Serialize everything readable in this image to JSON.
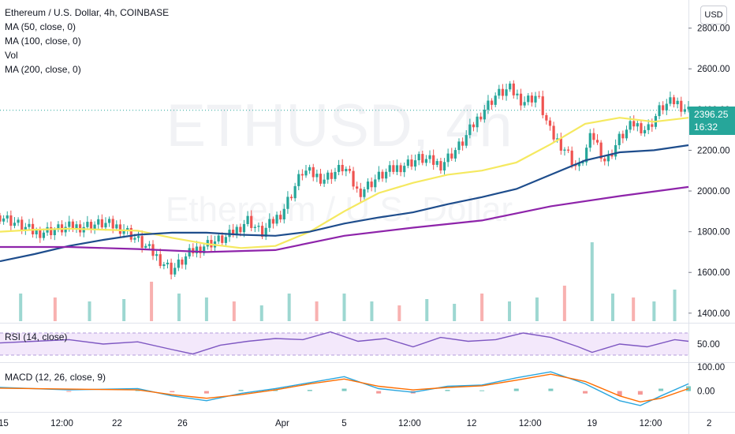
{
  "header": {
    "title": "Ethereum / U.S. Dollar, 4h, COINBASE",
    "currency_button": "USD"
  },
  "legend": [
    "MA (50, close, 0)",
    "MA (100, close, 0)",
    "Vol",
    "MA (200, close, 0)"
  ],
  "watermark": {
    "symbol": "ETHUSD, 4h",
    "name": "Ethereum / U.S. Dollar"
  },
  "last_price": {
    "value": "2396.25",
    "countdown": "16:32"
  },
  "rsi_label": "RSI (14, close)",
  "macd_label": "MACD (12, 26, close, 9)",
  "x_ticks": [
    "15",
    "12:00",
    "22",
    "26",
    "Apr",
    "5",
    "12:00",
    "12",
    "12:00",
    "19",
    "12:00",
    "2"
  ],
  "colors": {
    "up": "#26a69a",
    "down": "#ef5350",
    "ma50": "#f5e960",
    "ma100": "#1e4d8c",
    "ma200": "#8e24aa",
    "rsi": "#7e57c2",
    "macd": "#2aa6de",
    "signal": "#ff6d00"
  },
  "chart_data": [
    {
      "type": "line",
      "pane": "price",
      "title": "Ethereum / U.S. Dollar, 4h, COINBASE",
      "y_ticks": [
        1400,
        1600,
        1800,
        2000,
        2200,
        2400,
        2600,
        2800
      ],
      "ylim": [
        1380,
        2880
      ],
      "xlim": [
        0,
        1
      ],
      "x_tick_positions": [
        0.005,
        0.09,
        0.17,
        0.265,
        0.41,
        0.5,
        0.595,
        0.685,
        0.77,
        0.86,
        0.945,
        1.03
      ],
      "series": [
        {
          "name": "MA (50, close, 0)",
          "x": [
            0,
            0.05,
            0.1,
            0.15,
            0.2,
            0.25,
            0.3,
            0.35,
            0.4,
            0.45,
            0.5,
            0.55,
            0.6,
            0.65,
            0.7,
            0.75,
            0.8,
            0.85,
            0.9,
            0.95,
            1.0
          ],
          "values": [
            1800,
            1810,
            1815,
            1810,
            1805,
            1770,
            1740,
            1720,
            1730,
            1800,
            1900,
            1990,
            2040,
            2080,
            2100,
            2140,
            2230,
            2330,
            2360,
            2340,
            2360
          ]
        },
        {
          "name": "MA (100, close, 0)",
          "x": [
            0,
            0.05,
            0.1,
            0.15,
            0.2,
            0.25,
            0.3,
            0.35,
            0.4,
            0.45,
            0.5,
            0.55,
            0.6,
            0.65,
            0.7,
            0.75,
            0.8,
            0.85,
            0.9,
            0.95,
            1.0
          ],
          "values": [
            1655,
            1690,
            1730,
            1760,
            1785,
            1795,
            1795,
            1785,
            1780,
            1800,
            1840,
            1870,
            1895,
            1935,
            1970,
            2010,
            2080,
            2150,
            2190,
            2200,
            2225
          ]
        },
        {
          "name": "MA (200, close, 0)",
          "x": [
            0,
            0.1,
            0.2,
            0.3,
            0.4,
            0.5,
            0.6,
            0.7,
            0.8,
            0.9,
            1.0
          ],
          "values": [
            1725,
            1725,
            1715,
            1700,
            1710,
            1780,
            1820,
            1855,
            1925,
            1975,
            2020
          ]
        },
        {
          "name": "Price",
          "x": [
            0,
            0.05,
            0.1,
            0.15,
            0.18,
            0.22,
            0.25,
            0.28,
            0.3,
            0.33,
            0.36,
            0.38,
            0.41,
            0.44,
            0.47,
            0.5,
            0.52,
            0.55,
            0.58,
            0.61,
            0.64,
            0.67,
            0.7,
            0.72,
            0.74,
            0.76,
            0.78,
            0.8,
            0.82,
            0.84,
            0.86,
            0.88,
            0.9,
            0.92,
            0.94,
            0.96,
            0.98,
            1.0
          ],
          "values": [
            1880,
            1795,
            1820,
            1840,
            1815,
            1700,
            1610,
            1705,
            1740,
            1770,
            1860,
            1790,
            1900,
            2100,
            2060,
            2120,
            1990,
            2070,
            2120,
            2160,
            2130,
            2230,
            2390,
            2470,
            2500,
            2440,
            2470,
            2280,
            2210,
            2100,
            2280,
            2140,
            2260,
            2330,
            2300,
            2410,
            2440,
            2396
          ]
        }
      ]
    },
    {
      "type": "bar",
      "pane": "volume",
      "name": "Vol",
      "x": [
        0.03,
        0.08,
        0.13,
        0.18,
        0.22,
        0.26,
        0.3,
        0.34,
        0.38,
        0.42,
        0.46,
        0.5,
        0.54,
        0.58,
        0.62,
        0.66,
        0.7,
        0.74,
        0.78,
        0.82,
        0.86,
        0.89,
        0.92,
        0.95,
        0.98
      ],
      "values": [
        0.35,
        0.3,
        0.25,
        0.28,
        0.5,
        0.35,
        0.3,
        0.25,
        0.2,
        0.35,
        0.25,
        0.35,
        0.25,
        0.2,
        0.28,
        0.22,
        0.35,
        0.25,
        0.3,
        0.45,
        1.0,
        0.35,
        0.3,
        0.25,
        0.4
      ]
    },
    {
      "type": "line",
      "pane": "rsi",
      "name": "RSI (14, close)",
      "y_ticks": [
        50
      ],
      "ylim": [
        20,
        80
      ],
      "x": [
        0,
        0.05,
        0.1,
        0.15,
        0.2,
        0.25,
        0.28,
        0.32,
        0.36,
        0.4,
        0.44,
        0.48,
        0.52,
        0.56,
        0.6,
        0.64,
        0.68,
        0.72,
        0.76,
        0.8,
        0.84,
        0.86,
        0.9,
        0.94,
        0.98,
        1.0
      ],
      "values": [
        52,
        55,
        58,
        50,
        54,
        40,
        32,
        48,
        55,
        60,
        58,
        72,
        55,
        60,
        45,
        62,
        55,
        58,
        70,
        62,
        45,
        35,
        50,
        45,
        58,
        55
      ]
    },
    {
      "type": "line",
      "pane": "macd",
      "name": "MACD (12, 26, close, 9)",
      "y_ticks": [
        0,
        100
      ],
      "ylim": [
        -80,
        110
      ],
      "x": [
        0,
        0.1,
        0.2,
        0.25,
        0.3,
        0.35,
        0.4,
        0.45,
        0.5,
        0.55,
        0.6,
        0.65,
        0.7,
        0.75,
        0.8,
        0.85,
        0.9,
        0.93,
        0.96,
        1.0
      ],
      "series": [
        {
          "name": "MACD",
          "values": [
            15,
            5,
            10,
            -20,
            -40,
            -10,
            10,
            35,
            60,
            10,
            -5,
            20,
            25,
            55,
            80,
            30,
            -40,
            -60,
            -20,
            30
          ]
        },
        {
          "name": "Signal",
          "values": [
            12,
            8,
            5,
            -15,
            -30,
            -15,
            5,
            30,
            50,
            20,
            5,
            15,
            22,
            45,
            70,
            40,
            -20,
            -45,
            -30,
            10
          ]
        }
      ]
    }
  ]
}
